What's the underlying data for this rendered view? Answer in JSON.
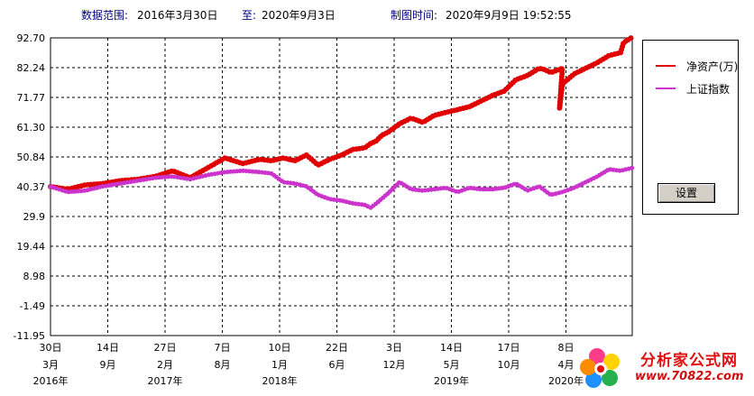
{
  "header": {
    "range_label": "数据范围:",
    "start_date": "2016年3月30日",
    "to_label": "至:",
    "end_date": "2020年9月3日",
    "made_label": "制图时间:",
    "made_time": "2020年9月9日 19:52:55"
  },
  "legend": {
    "items": [
      {
        "label": "净资产(万)",
        "color": "#e00000"
      },
      {
        "label": "上证指数",
        "color": "#cc33cc"
      }
    ]
  },
  "settings_button": {
    "label": "设置"
  },
  "watermark": {
    "text": "分析家公式网",
    "url": "www.70822.com"
  },
  "chart_data": {
    "type": "line",
    "y_ticks": [
      "92.70",
      "82.24",
      "71.77",
      "61.30",
      "50.84",
      "40.37",
      "29.9",
      "19.44",
      "8.98",
      "-1.49",
      "-11.95"
    ],
    "ylim": [
      -11.95,
      92.7
    ],
    "x_tick_labels": [
      {
        "day": "30日",
        "month": "3月",
        "year": "2016年"
      },
      {
        "day": "14日",
        "month": "9月",
        "year": ""
      },
      {
        "day": "27日",
        "month": "2月",
        "year": "2017年"
      },
      {
        "day": "7日",
        "month": "8月",
        "year": ""
      },
      {
        "day": "10日",
        "month": "1月",
        "year": "2018年"
      },
      {
        "day": "22日",
        "month": "6月",
        "year": ""
      },
      {
        "day": "3日",
        "month": "12月",
        "year": ""
      },
      {
        "day": "14日",
        "month": "5月",
        "year": "2019年"
      },
      {
        "day": "17日",
        "month": "10月",
        "year": ""
      },
      {
        "day": "8日",
        "month": "4月",
        "year": "2020年"
      }
    ],
    "series": [
      {
        "name": "净资产(万)",
        "color": "#e00000",
        "x": [
          0,
          0.03,
          0.06,
          0.09,
          0.12,
          0.15,
          0.18,
          0.21,
          0.24,
          0.27,
          0.3,
          0.33,
          0.36,
          0.38,
          0.4,
          0.42,
          0.44,
          0.46,
          0.48,
          0.5,
          0.52,
          0.54,
          0.55,
          0.56,
          0.57,
          0.58,
          0.6,
          0.61,
          0.62,
          0.64,
          0.66,
          0.68,
          0.7,
          0.72,
          0.74,
          0.75,
          0.76,
          0.78,
          0.8,
          0.82,
          0.84,
          0.85,
          0.86,
          0.88,
          0.875,
          0.88,
          0.9,
          0.92,
          0.94,
          0.96,
          0.98,
          0.985,
          1.0
        ],
        "values": [
          40.4,
          39.5,
          41.0,
          41.5,
          42.5,
          43.0,
          44.0,
          46.0,
          43.5,
          47.0,
          50.5,
          48.5,
          50.0,
          49.5,
          50.5,
          49.5,
          51.5,
          48.0,
          50.0,
          51.5,
          53.5,
          54.0,
          55.5,
          56.5,
          58.5,
          59.5,
          62.5,
          63.5,
          64.5,
          63.0,
          65.5,
          66.5,
          67.5,
          68.5,
          70.5,
          71.5,
          72.5,
          74.0,
          78.0,
          79.5,
          82.0,
          81.5,
          80.5,
          82.0,
          68.0,
          76.5,
          80.0,
          82.0,
          84.0,
          86.5,
          87.5,
          91.0,
          93.0
        ]
      },
      {
        "name": "上证指数",
        "color": "#cc33cc",
        "x": [
          0,
          0.03,
          0.06,
          0.09,
          0.12,
          0.15,
          0.18,
          0.21,
          0.24,
          0.27,
          0.3,
          0.33,
          0.36,
          0.38,
          0.4,
          0.42,
          0.44,
          0.46,
          0.48,
          0.5,
          0.52,
          0.54,
          0.55,
          0.56,
          0.58,
          0.6,
          0.62,
          0.64,
          0.66,
          0.68,
          0.7,
          0.72,
          0.74,
          0.76,
          0.78,
          0.8,
          0.82,
          0.84,
          0.86,
          0.88,
          0.9,
          0.92,
          0.94,
          0.96,
          0.98,
          1.0
        ],
        "values": [
          40.4,
          38.5,
          39.0,
          40.5,
          41.5,
          42.5,
          43.5,
          44.0,
          43.0,
          44.5,
          45.5,
          46.0,
          45.5,
          45.0,
          42.0,
          41.5,
          40.5,
          37.5,
          36.0,
          35.5,
          34.5,
          34.0,
          33.0,
          34.5,
          38.0,
          42.0,
          39.5,
          39.0,
          39.5,
          40.0,
          38.5,
          40.0,
          39.5,
          39.5,
          40.0,
          41.5,
          39.0,
          40.5,
          37.5,
          38.5,
          40.0,
          42.0,
          44.0,
          46.5,
          46.0,
          47.0
        ]
      }
    ],
    "grid": true
  }
}
